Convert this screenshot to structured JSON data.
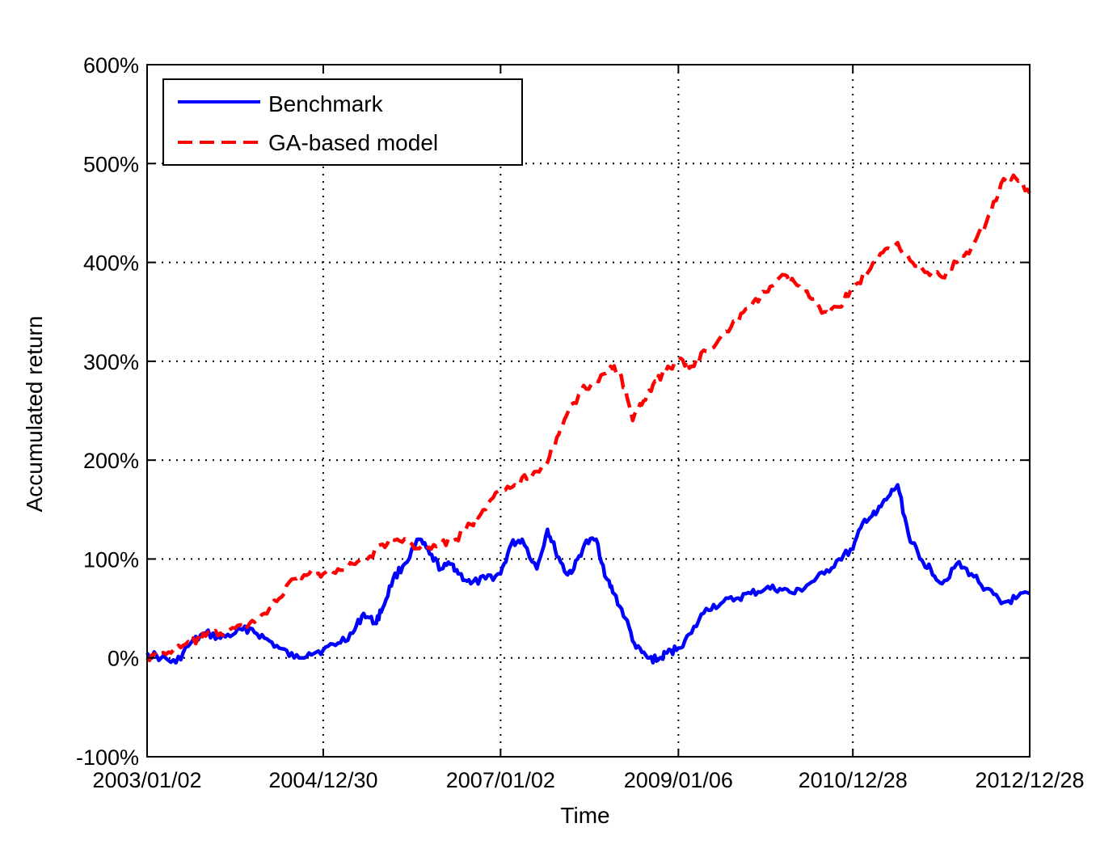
{
  "chart_data": {
    "type": "line",
    "xlabel": "Time",
    "ylabel": "Accumulated return",
    "x_ticks": [
      "2003/01/02",
      "2004/12/30",
      "2007/01/02",
      "2009/01/06",
      "2010/12/28",
      "2012/12/28"
    ],
    "x_range": [
      "2003/01/02",
      "2012/12/28"
    ],
    "ylim": [
      -100,
      600
    ],
    "y_ticks": [
      -100,
      0,
      100,
      200,
      300,
      400,
      500,
      600
    ],
    "y_tick_labels": [
      "-100%",
      "0%",
      "100%",
      "200%",
      "300%",
      "400%",
      "500%",
      "600%"
    ],
    "grid": true,
    "legend_position": "top-left",
    "series": [
      {
        "name": "Benchmark",
        "color": "#0000ff",
        "style": "solid",
        "x": [
          "2003/01/02",
          "2003/03/01",
          "2003/05/01",
          "2003/07/01",
          "2003/09/01",
          "2003/11/01",
          "2004/01/01",
          "2004/03/01",
          "2004/05/01",
          "2004/07/01",
          "2004/09/01",
          "2004/11/01",
          "2004/12/30",
          "2005/03/01",
          "2005/05/01",
          "2005/06/15",
          "2005/08/01",
          "2005/09/01",
          "2005/10/15",
          "2005/12/01",
          "2006/02/01",
          "2006/03/15",
          "2006/05/01",
          "2006/06/15",
          "2006/07/15",
          "2006/09/01",
          "2006/11/01",
          "2007/01/02",
          "2007/02/15",
          "2007/04/01",
          "2007/06/01",
          "2007/07/15",
          "2007/08/15",
          "2007/10/01",
          "2007/11/01",
          "2007/12/15",
          "2008/02/01",
          "2008/03/15",
          "2008/04/15",
          "2008/06/01",
          "2008/07/15",
          "2008/09/01",
          "2008/10/15",
          "2008/11/20",
          "2009/01/06",
          "2009/03/01",
          "2009/05/01",
          "2009/07/01",
          "2009/09/01",
          "2009/11/01",
          "2010/01/01",
          "2010/03/01",
          "2010/05/01",
          "2010/07/01",
          "2010/09/01",
          "2010/11/01",
          "2010/12/28",
          "2011/02/15",
          "2011/04/01",
          "2011/05/15",
          "2011/07/01",
          "2011/08/15",
          "2011/10/01",
          "2011/11/15",
          "2012/01/01",
          "2012/03/01",
          "2012/05/01",
          "2012/07/01",
          "2012/09/01",
          "2012/11/01",
          "2012/12/28"
        ],
        "y": [
          5,
          0,
          -5,
          15,
          25,
          20,
          25,
          30,
          20,
          10,
          0,
          5,
          8,
          15,
          25,
          45,
          35,
          50,
          80,
          95,
          120,
          105,
          90,
          95,
          85,
          75,
          80,
          85,
          115,
          120,
          90,
          130,
          110,
          85,
          90,
          115,
          120,
          80,
          65,
          40,
          10,
          0,
          -2,
          5,
          10,
          25,
          50,
          55,
          60,
          65,
          70,
          70,
          65,
          75,
          85,
          100,
          110,
          140,
          145,
          160,
          175,
          125,
          100,
          90,
          75,
          95,
          85,
          70,
          55,
          60,
          65
        ]
      },
      {
        "name": "GA-based model",
        "color": "#ff0000",
        "style": "dashed",
        "x": [
          "2003/01/02",
          "2003/03/01",
          "2003/05/01",
          "2003/07/01",
          "2003/09/01",
          "2003/11/01",
          "2004/01/01",
          "2004/03/01",
          "2004/05/01",
          "2004/07/01",
          "2004/09/01",
          "2004/11/01",
          "2004/12/30",
          "2005/03/01",
          "2005/05/01",
          "2005/07/01",
          "2005/09/01",
          "2005/11/01",
          "2006/01/01",
          "2006/03/01",
          "2006/05/01",
          "2006/07/01",
          "2006/09/01",
          "2006/11/01",
          "2007/01/02",
          "2007/03/01",
          "2007/05/01",
          "2007/07/01",
          "2007/08/15",
          "2007/10/01",
          "2007/12/01",
          "2008/02/01",
          "2008/04/01",
          "2008/05/15",
          "2008/07/01",
          "2008/08/15",
          "2008/10/01",
          "2008/11/15",
          "2009/01/06",
          "2009/03/01",
          "2009/05/01",
          "2009/07/01",
          "2009/09/01",
          "2009/11/01",
          "2010/01/01",
          "2010/03/01",
          "2010/05/01",
          "2010/07/01",
          "2010/09/01",
          "2010/11/01",
          "2010/12/28",
          "2011/03/01",
          "2011/05/01",
          "2011/07/01",
          "2011/09/01",
          "2011/11/01",
          "2012/01/01",
          "2012/03/01",
          "2012/05/01",
          "2012/07/01",
          "2012/09/01",
          "2012/11/01",
          "2012/12/28"
        ],
        "y": [
          0,
          5,
          8,
          15,
          22,
          25,
          30,
          35,
          45,
          60,
          80,
          85,
          85,
          90,
          95,
          100,
          115,
          120,
          115,
          110,
          115,
          120,
          135,
          150,
          170,
          175,
          185,
          195,
          215,
          245,
          270,
          280,
          295,
          285,
          240,
          260,
          280,
          290,
          300,
          295,
          310,
          325,
          340,
          355,
          370,
          385,
          380,
          365,
          350,
          355,
          375,
          390,
          410,
          420,
          400,
          390,
          385,
          400,
          415,
          440,
          480,
          485,
          470
        ]
      }
    ]
  }
}
